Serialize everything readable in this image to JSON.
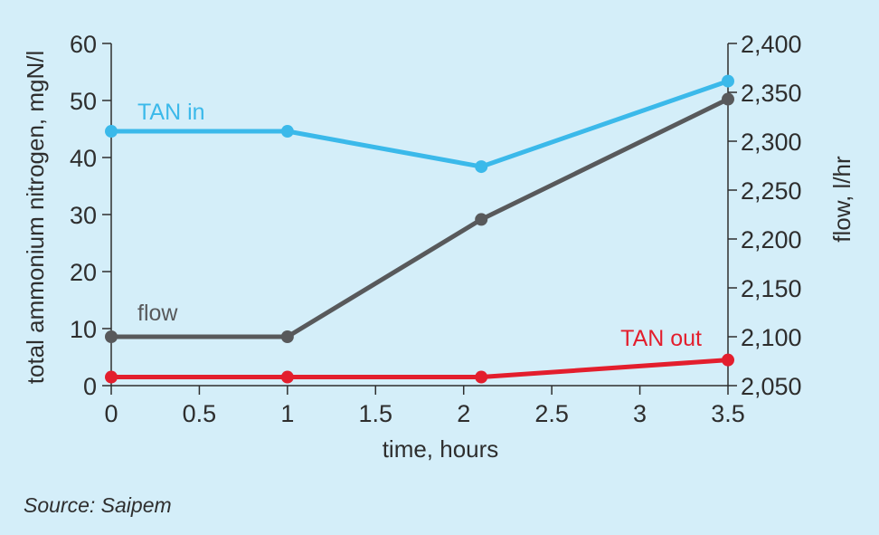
{
  "chart_data": {
    "type": "line",
    "x": [
      0,
      1,
      2.1,
      3.5
    ],
    "xlabel": "time, hours",
    "xlim": [
      0,
      3.5
    ],
    "xticks": [
      "0",
      "0.5",
      "1",
      "1.5",
      "2",
      "2.5",
      "3",
      "3.5"
    ],
    "ylabel": "total ammonium nitrogen, mgN/l",
    "ylim": [
      0,
      60
    ],
    "yticks": [
      "0",
      "10",
      "20",
      "30",
      "40",
      "50",
      "60"
    ],
    "y2label": "flow, l/hr",
    "y2lim": [
      2050,
      2400
    ],
    "y2ticks": [
      "2,050",
      "2,100",
      "2,150",
      "2,200",
      "2,250",
      "2,300",
      "2,350",
      "2,400"
    ],
    "grid": false,
    "series": [
      {
        "name": "TAN in",
        "axis": "left",
        "color": "#3bb9ea",
        "values": [
          44.6,
          44.6,
          38.4,
          53.4
        ]
      },
      {
        "name": "flow",
        "axis": "right",
        "color": "#58595b",
        "values": [
          2100,
          2100,
          2220,
          2343
        ]
      },
      {
        "name": "TAN out",
        "axis": "left",
        "color": "#e31e2d",
        "values": [
          1.5,
          1.5,
          1.5,
          4.5
        ]
      }
    ]
  },
  "source": "Source: Saipem"
}
